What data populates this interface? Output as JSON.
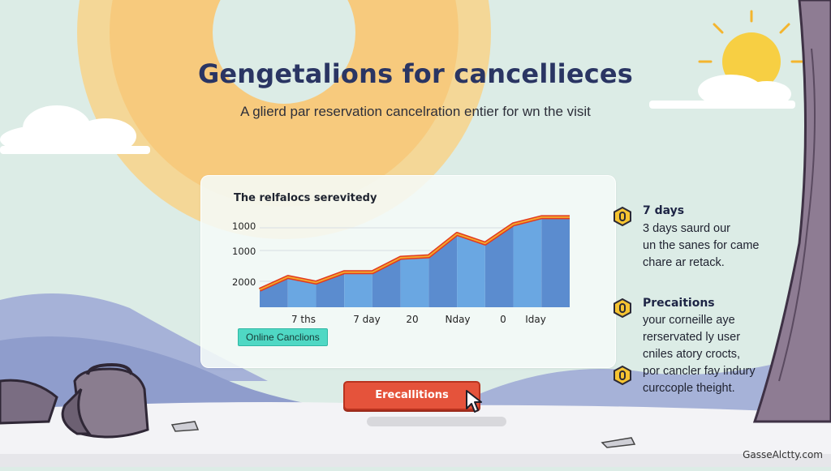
{
  "page": {
    "title": "Gengetalions for cancellieces",
    "subtitle": "A glierd par reservation cancelration entier for wn the visit",
    "watermark": "GasseAlctty.com"
  },
  "card": {
    "title": "The relfalocs serevitedy",
    "badge": "Online Canclions"
  },
  "cta": {
    "label": "Erecallitions"
  },
  "side_items": [
    {
      "icon": "hexagon-icon",
      "heading": "7 days",
      "lines": [
        "3 days saurd our",
        "un the sanes for came",
        "chare ar retack."
      ]
    },
    {
      "icon": "hexagon-icon",
      "heading": "Precaitions",
      "lines": [
        "your corneille aye",
        "rerservated ly user",
        "cniles atory crocts,",
        "por cancler fay indury",
        "curccople theight."
      ]
    }
  ],
  "chart_data": {
    "type": "area",
    "title": "The relfalocs serevitedy",
    "y_tick_labels": [
      "1000",
      "1000",
      "2000"
    ],
    "x_tick_labels": [
      "7 ths",
      "7 day",
      "20",
      "Nday",
      "0",
      "Iday"
    ],
    "series": [
      {
        "values": [
          22,
          38,
          31,
          44,
          44,
          62,
          64,
          92,
          80,
          104,
          113,
          113
        ]
      }
    ],
    "ylim": [
      0,
      120
    ],
    "colors": {
      "area_light": "#6aa7e2",
      "area_dark": "#5b8ccf",
      "line_outer": "#e23a1f",
      "line_inner": "#f2a72c"
    }
  },
  "colors": {
    "title": "#2a3563",
    "cta": "#e5533b",
    "badge": "#4fd8c4",
    "sun": "#f7c948"
  }
}
